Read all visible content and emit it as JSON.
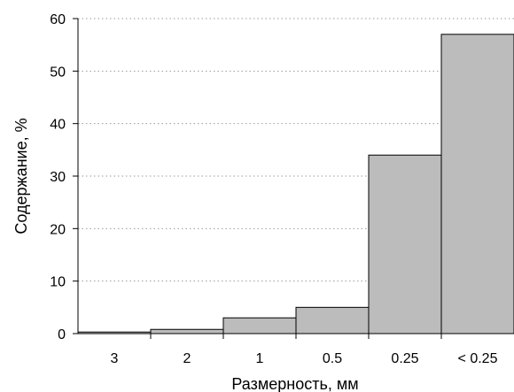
{
  "chart_data": {
    "type": "bar",
    "title": "",
    "xlabel": "Размерность, мм",
    "ylabel": "Содержание, %",
    "categories": [
      "3",
      "2",
      "1",
      "0.5",
      "0.25",
      "< 0.25"
    ],
    "values": [
      0.3,
      0.8,
      3,
      5,
      34,
      57
    ],
    "ylim": [
      0,
      60
    ],
    "yticks": [
      "0",
      "10",
      "20",
      "30",
      "40",
      "50",
      "60"
    ],
    "grid": "horizontal dotted",
    "legend": "none",
    "colors": {
      "bar_fill": "#bcbcbc",
      "bar_stroke": "#000000",
      "grid": "#9a9a9a",
      "axis": "#000000"
    }
  }
}
